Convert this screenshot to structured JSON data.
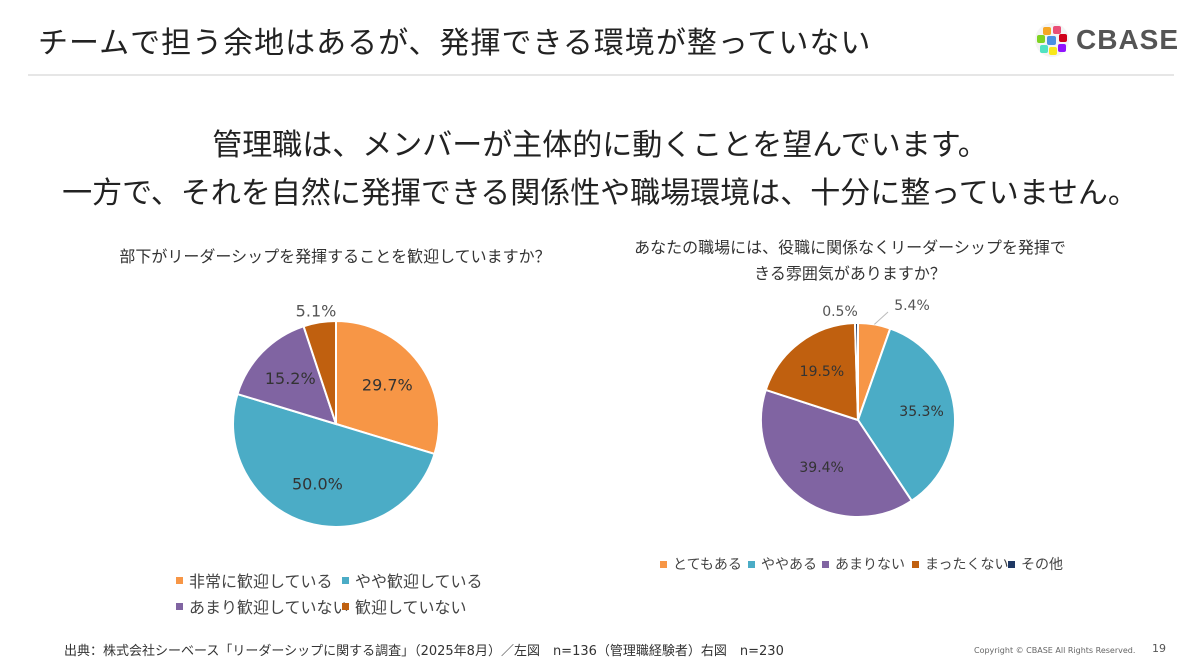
{
  "header": {
    "title": "チームで担う余地はあるが、発揮できる環境が整っていない",
    "logo_text": "CBASE"
  },
  "lead": {
    "line1": "管理職は、メンバーが主体的に動くことを望んでいます。",
    "line2": "一方で、それを自然に発揮できる関係性や職場環境は、十分に整っていません。"
  },
  "colors": {
    "orange": "#F79646",
    "blue": "#4BACC6",
    "purple": "#8064A2",
    "rust": "#C0600F",
    "navy": "#1F3864"
  },
  "chart_data": [
    {
      "type": "pie",
      "title": "部下がリーダーシップを発揮することを歓迎していますか？",
      "categories": [
        "非常に歓迎している",
        "やや歓迎している",
        "あまり歓迎していない",
        "歓迎していない"
      ],
      "values": [
        29.7,
        50.0,
        15.2,
        5.1
      ],
      "labels": [
        "29.7%",
        "50.0%",
        "15.2%",
        "5.1%"
      ],
      "legend_position": "bottom"
    },
    {
      "type": "pie",
      "title_lines": [
        "あなたの職場には、役職に関係なくリーダーシップを発揮で",
        "きる雰囲気がありますか？"
      ],
      "categories": [
        "とてもある",
        "ややある",
        "あまりない",
        "まったくない",
        "その他"
      ],
      "values": [
        5.4,
        35.3,
        39.4,
        19.5,
        0.5
      ],
      "labels": [
        "5.4%",
        "35.3%",
        "39.4%",
        "19.5%",
        "0.5%"
      ],
      "legend_position": "bottom"
    }
  ],
  "footer": {
    "source": "出典：株式会社シーベース「リーダーシップに関する調査」（2025年8月）／左図　n=136（管理職経験者）右図　n=230",
    "copyright": "Copyright © CBASE All Rights Reserved.",
    "page": "19"
  }
}
